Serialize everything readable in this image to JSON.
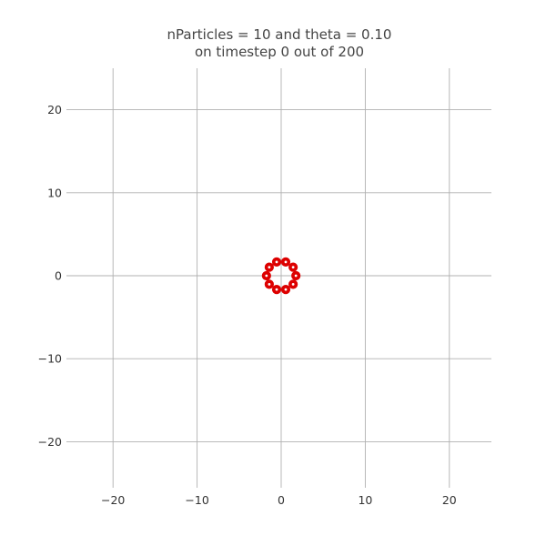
{
  "chart_data": {
    "type": "scatter",
    "title_lines": [
      "nParticles = 10 and theta = 0.10",
      "on timestep 0 out of 200"
    ],
    "xlabel": "",
    "ylabel": "",
    "xlim": [
      -25,
      25
    ],
    "ylim": [
      -25,
      25
    ],
    "grid": true,
    "x_ticks": [
      -20,
      -10,
      0,
      10,
      20
    ],
    "y_ticks": [
      20,
      10,
      0,
      -10,
      -20
    ],
    "x_tick_labels": [
      "−20",
      "−10",
      "0",
      "10",
      "20"
    ],
    "y_tick_labels": [
      "20",
      "10",
      "0",
      "−10",
      "−20"
    ],
    "marker_color": "#dd0000",
    "points": [
      {
        "x": 1.75,
        "y": 0.0
      },
      {
        "x": 1.42,
        "y": 1.03
      },
      {
        "x": 0.54,
        "y": 1.66
      },
      {
        "x": -0.54,
        "y": 1.66
      },
      {
        "x": -1.42,
        "y": 1.03
      },
      {
        "x": -1.75,
        "y": 0.0
      },
      {
        "x": -1.42,
        "y": -1.03
      },
      {
        "x": -0.54,
        "y": -1.66
      },
      {
        "x": 0.54,
        "y": -1.66
      },
      {
        "x": 1.42,
        "y": -1.03
      }
    ]
  }
}
